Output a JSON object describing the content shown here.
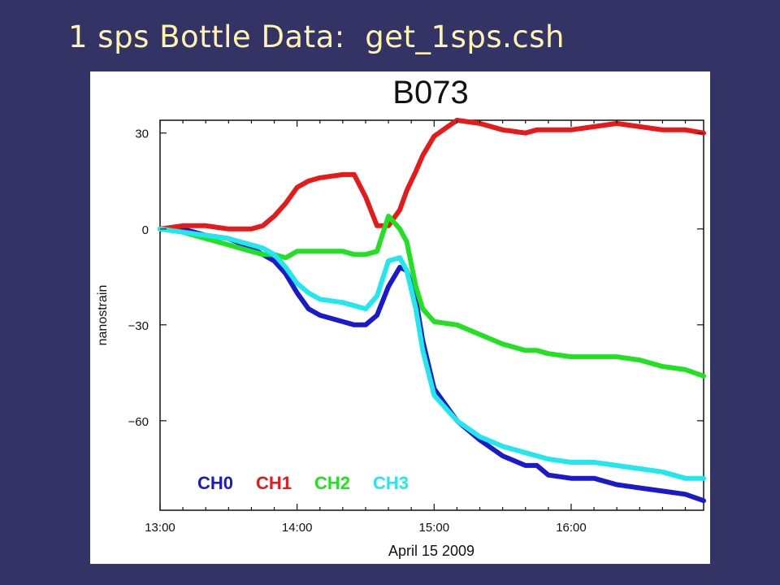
{
  "slide": {
    "title": "1 sps Bottle Data:  get_1sps.csh",
    "background": "#333366",
    "title_color": "#fff3b0"
  },
  "chart_data": {
    "type": "line",
    "title": "B073",
    "xlabel": "April 15 2009",
    "ylabel": "nanostrain",
    "xlim": [
      "13:00",
      "16:58"
    ],
    "ylim": [
      -88,
      34
    ],
    "x_ticks": [
      "13:00",
      "14:00",
      "15:00",
      "16:00"
    ],
    "y_ticks": [
      30,
      0,
      -30,
      -60
    ],
    "y_tick_labels": [
      "30",
      "0",
      "−30",
      "−60"
    ],
    "grid": false,
    "legend_position": "bottom-left",
    "series": [
      {
        "name": "CH0",
        "color": "#1a1acc",
        "x": [
          "13:00",
          "13:10",
          "13:20",
          "13:30",
          "13:40",
          "13:45",
          "13:50",
          "13:55",
          "14:00",
          "14:05",
          "14:10",
          "14:20",
          "14:25",
          "14:30",
          "14:35",
          "14:40",
          "14:45",
          "14:48",
          "14:52",
          "14:55",
          "15:00",
          "15:10",
          "15:20",
          "15:30",
          "15:40",
          "15:45",
          "15:50",
          "16:00",
          "16:10",
          "16:20",
          "16:30",
          "16:40",
          "16:50",
          "16:58"
        ],
        "values": [
          0,
          0,
          -2,
          -3,
          -6,
          -8,
          -10,
          -14,
          -20,
          -25,
          -27,
          -29,
          -30,
          -30,
          -27,
          -18,
          -12,
          -13,
          -22,
          -35,
          -50,
          -60,
          -66,
          -71,
          -74,
          -74,
          -77,
          -78,
          -78,
          -80,
          -81,
          -82,
          -83,
          -85
        ]
      },
      {
        "name": "CH1",
        "color": "#e61a1a",
        "x": [
          "13:00",
          "13:10",
          "13:20",
          "13:30",
          "13:40",
          "13:45",
          "13:50",
          "13:55",
          "14:00",
          "14:05",
          "14:10",
          "14:20",
          "14:25",
          "14:30",
          "14:35",
          "14:40",
          "14:45",
          "14:48",
          "14:52",
          "14:55",
          "15:00",
          "15:10",
          "15:20",
          "15:30",
          "15:40",
          "15:45",
          "15:50",
          "16:00",
          "16:10",
          "16:20",
          "16:30",
          "16:40",
          "16:50",
          "16:58"
        ],
        "values": [
          0,
          1,
          1,
          0,
          0,
          1,
          4,
          8,
          13,
          15,
          16,
          17,
          17,
          10,
          1,
          1,
          6,
          12,
          18,
          23,
          29,
          34,
          33,
          31,
          30,
          31,
          31,
          31,
          32,
          33,
          32,
          31,
          31,
          30
        ]
      },
      {
        "name": "CH2",
        "color": "#22e022",
        "x": [
          "13:00",
          "13:10",
          "13:20",
          "13:30",
          "13:40",
          "13:45",
          "13:50",
          "13:55",
          "14:00",
          "14:05",
          "14:10",
          "14:20",
          "14:25",
          "14:30",
          "14:35",
          "14:40",
          "14:45",
          "14:48",
          "14:52",
          "14:55",
          "15:00",
          "15:10",
          "15:20",
          "15:30",
          "15:40",
          "15:45",
          "15:50",
          "16:00",
          "16:10",
          "16:20",
          "16:30",
          "16:40",
          "16:50",
          "16:58"
        ],
        "values": [
          0,
          -1,
          -3,
          -5,
          -7,
          -8,
          -8,
          -9,
          -7,
          -7,
          -7,
          -7,
          -8,
          -8,
          -7,
          4,
          0,
          -4,
          -18,
          -25,
          -29,
          -30,
          -33,
          -36,
          -38,
          -38,
          -39,
          -40,
          -40,
          -40,
          -41,
          -43,
          -44,
          -46
        ]
      },
      {
        "name": "CH3",
        "color": "#22e8ee",
        "x": [
          "13:00",
          "13:10",
          "13:20",
          "13:30",
          "13:40",
          "13:45",
          "13:50",
          "13:55",
          "14:00",
          "14:05",
          "14:10",
          "14:20",
          "14:25",
          "14:30",
          "14:35",
          "14:40",
          "14:45",
          "14:48",
          "14:52",
          "14:55",
          "15:00",
          "15:10",
          "15:20",
          "15:30",
          "15:40",
          "15:45",
          "15:50",
          "16:00",
          "16:10",
          "16:20",
          "16:30",
          "16:40",
          "16:50",
          "16:58"
        ],
        "values": [
          0,
          -1,
          -2,
          -3,
          -5,
          -6,
          -8,
          -12,
          -17,
          -20,
          -22,
          -23,
          -24,
          -25,
          -21,
          -10,
          -9,
          -13,
          -25,
          -38,
          -52,
          -60,
          -65,
          -68,
          -70,
          -71,
          -72,
          -73,
          -73,
          -74,
          -75,
          -76,
          -78,
          -78
        ]
      }
    ]
  }
}
